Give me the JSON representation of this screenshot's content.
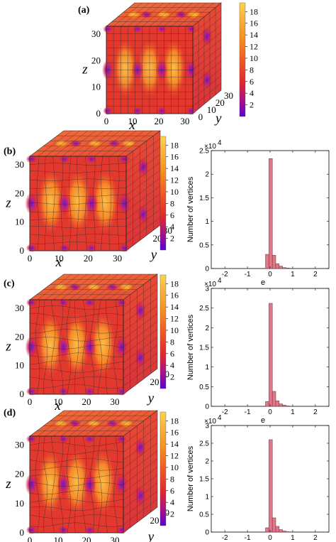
{
  "panels": [
    "(a)",
    "(b)",
    "(c)",
    "(d)"
  ],
  "cube_axes": {
    "x_label": "x",
    "y_label": "y",
    "z_label": "z",
    "x_ticks": [
      "0",
      "10",
      "20",
      "30"
    ],
    "y_ticks": [
      "30",
      "20",
      "10",
      "0"
    ],
    "z_ticks": [
      "0",
      "10",
      "20",
      "30"
    ],
    "y_ticks_short": [
      "30"
    ]
  },
  "colorbar": {
    "ticks": [
      "2",
      "4",
      "6",
      "8",
      "10",
      "12",
      "14",
      "16",
      "18"
    ],
    "range": [
      0,
      19.5
    ],
    "colors": [
      "#5b00d6",
      "#c41d6a",
      "#e8242f",
      "#f15a24",
      "#f7931e",
      "#fbb040",
      "#fcd44a"
    ]
  },
  "chart_data": [
    {
      "type": "heatmap",
      "panel": "(a)",
      "xlabel": "x",
      "ylabel": "y",
      "zlabel": "z"
    },
    {
      "type": "heatmap",
      "panel": "(b)",
      "xlabel": "x",
      "ylabel": "y",
      "zlabel": "z"
    },
    {
      "type": "heatmap",
      "panel": "(c)",
      "xlabel": "x",
      "ylabel": "y",
      "zlabel": "z"
    },
    {
      "type": "heatmap",
      "panel": "(d)",
      "xlabel": "x",
      "ylabel": "y",
      "zlabel": "z"
    },
    {
      "type": "bar",
      "panel": "(b)",
      "xlabel": "e",
      "ylabel": "Number of vertices",
      "multiplier": "×10",
      "exponent": "4",
      "xlim": [
        -2.6,
        2.6
      ],
      "ylim": [
        0,
        2.5
      ],
      "xticks": [
        "-2",
        "-1",
        "0",
        "1",
        "2"
      ],
      "yticks": [
        "0",
        "0.5",
        "1",
        "1.5",
        "2",
        "2.5"
      ],
      "bins": [
        {
          "x0": -0.2,
          "x1": -0.05,
          "v": 0.3
        },
        {
          "x0": -0.05,
          "x1": 0.1,
          "v": 2.33
        },
        {
          "x0": 0.1,
          "x1": 0.25,
          "v": 0.28
        },
        {
          "x0": 0.25,
          "x1": 0.4,
          "v": 0.1
        },
        {
          "x0": 0.4,
          "x1": 0.55,
          "v": 0.05
        },
        {
          "x0": 0.55,
          "x1": 0.7,
          "v": 0.02
        },
        {
          "x0": 0.7,
          "x1": 0.85,
          "v": 0.01
        }
      ]
    },
    {
      "type": "bar",
      "panel": "(c)",
      "xlabel": "e",
      "ylabel": "Number of vertices",
      "multiplier": "×10",
      "exponent": "4",
      "xlim": [
        -2.6,
        2.6
      ],
      "ylim": [
        0,
        3
      ],
      "xticks": [
        "-2",
        "-1",
        "0",
        "1",
        "2"
      ],
      "yticks": [
        "0",
        "0.5",
        "1",
        "1.5",
        "2",
        "2.5",
        "3"
      ],
      "bins": [
        {
          "x0": -0.2,
          "x1": -0.05,
          "v": 0.12
        },
        {
          "x0": -0.05,
          "x1": 0.1,
          "v": 2.62
        },
        {
          "x0": 0.1,
          "x1": 0.25,
          "v": 0.38
        },
        {
          "x0": 0.25,
          "x1": 0.4,
          "v": 0.14
        },
        {
          "x0": 0.4,
          "x1": 0.55,
          "v": 0.06
        },
        {
          "x0": 0.55,
          "x1": 0.7,
          "v": 0.03
        },
        {
          "x0": 0.7,
          "x1": 0.85,
          "v": 0.01
        }
      ]
    },
    {
      "type": "bar",
      "panel": "(d)",
      "xlabel": "e",
      "ylabel": "Number of vertices",
      "multiplier": "×10",
      "exponent": "4",
      "xlim": [
        -2.6,
        2.6
      ],
      "ylim": [
        0,
        3
      ],
      "xticks": [
        "-2",
        "-1",
        "0",
        "1",
        "2"
      ],
      "yticks": [
        "0",
        "0.5",
        "1",
        "1.5",
        "2",
        "2.5",
        "3"
      ],
      "bins": [
        {
          "x0": -0.2,
          "x1": -0.05,
          "v": 0.12
        },
        {
          "x0": -0.05,
          "x1": 0.1,
          "v": 2.6
        },
        {
          "x0": 0.1,
          "x1": 0.25,
          "v": 0.4
        },
        {
          "x0": 0.25,
          "x1": 0.4,
          "v": 0.16
        },
        {
          "x0": 0.4,
          "x1": 0.55,
          "v": 0.07
        },
        {
          "x0": 0.55,
          "x1": 0.7,
          "v": 0.03
        },
        {
          "x0": 0.7,
          "x1": 0.85,
          "v": 0.01
        }
      ]
    }
  ]
}
